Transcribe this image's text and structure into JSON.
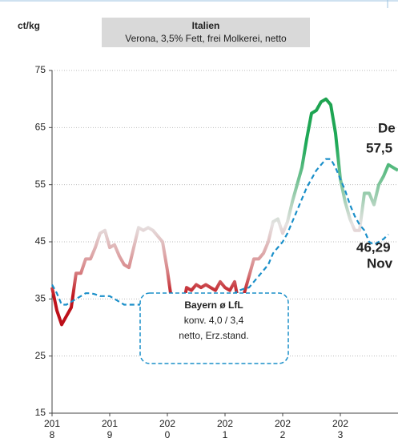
{
  "chart_data": {
    "type": "line",
    "title": "Italien",
    "subtitle": "Verona, 3,5% Fett, frei Molkerei, netto",
    "y_label": "ct/kg",
    "x": [
      2018,
      2018.083,
      2018.167,
      2018.25,
      2018.333,
      2018.417,
      2018.5,
      2018.583,
      2018.667,
      2018.75,
      2018.833,
      2018.917,
      2019,
      2019.083,
      2019.167,
      2019.25,
      2019.333,
      2019.417,
      2019.5,
      2019.583,
      2019.667,
      2019.75,
      2019.833,
      2019.917,
      2020,
      2020.083,
      2020.167,
      2020.25,
      2020.333,
      2020.417,
      2020.5,
      2020.583,
      2020.667,
      2020.75,
      2020.833,
      2020.917,
      2021,
      2021.083,
      2021.167,
      2021.25,
      2021.333,
      2021.417,
      2021.5,
      2021.583,
      2021.667,
      2021.75,
      2021.833,
      2021.917,
      2022,
      2022.083,
      2022.167,
      2022.25,
      2022.333,
      2022.417,
      2022.5,
      2022.583,
      2022.667,
      2022.75,
      2022.833,
      2022.917,
      2023,
      2023.083,
      2023.167,
      2023.25,
      2023.333,
      2023.417,
      2023.5,
      2023.583,
      2023.667,
      2023.75,
      2023.833,
      2023.917,
      2024
    ],
    "series": [
      {
        "color": "gradient",
        "values": [
          37,
          33,
          30.5,
          32,
          33.5,
          39.5,
          39.5,
          42,
          42,
          44,
          46.5,
          47,
          44,
          44.5,
          42.5,
          41,
          40.5,
          44,
          47.5,
          47,
          47.5,
          47,
          46,
          45,
          40,
          34,
          32,
          32.5,
          37,
          36.5,
          37.5,
          37,
          37.5,
          37,
          36.5,
          38,
          37,
          36.5,
          38,
          33.5,
          36,
          39,
          42,
          42,
          43,
          45,
          48.5,
          49,
          46.5,
          48.5,
          52,
          55,
          58,
          63,
          67.5,
          68,
          69.5,
          70,
          69,
          64,
          56,
          52,
          49,
          47,
          47,
          53.5,
          53.5,
          51.5,
          55,
          56.5,
          58.5,
          58,
          57.5
        ]
      },
      {
        "name": "Bayern ø LfL",
        "color": "#1a8fc9",
        "dashed": true,
        "values": [
          37.5,
          36,
          34,
          34,
          34.5,
          35,
          35.5,
          36,
          36,
          35.8,
          35.5,
          35.5,
          35.5,
          35,
          34.5,
          34,
          34,
          34,
          34,
          34,
          34.2,
          34.4,
          34.6,
          34.8,
          34.5,
          33.5,
          33,
          32.6,
          33,
          33.2,
          33.5,
          33.8,
          34,
          34,
          34.2,
          34.5,
          35,
          35.5,
          36,
          36.5,
          36.8,
          37,
          38,
          39,
          40,
          41,
          43,
          44,
          45,
          46.5,
          48.5,
          50.5,
          52.5,
          54.5,
          56,
          57.5,
          58.5,
          59.5,
          59.5,
          58,
          56,
          54,
          51.5,
          49.5,
          48,
          47,
          45,
          44.5,
          45,
          45.5,
          46.3,
          null,
          null
        ]
      }
    ],
    "series_note_lines": [
      "konv. 4,0 / 3,4",
      "netto, Erz.stand."
    ],
    "annotations": [
      {
        "text": "De",
        "color": "#1e9e4a"
      },
      {
        "text": "57,5",
        "color": "#1e9e4a"
      },
      {
        "text": "46,29",
        "color": "#2bb5e6"
      },
      {
        "text": "Nov",
        "color": "#2bb5e6"
      }
    ],
    "xlim": [
      2018,
      2024
    ],
    "xticks": [
      2018,
      2019,
      2020,
      2021,
      2022,
      2023
    ],
    "ylim": [
      15,
      75
    ],
    "yticks": [
      15,
      25,
      35,
      45,
      55,
      65,
      75
    ],
    "grid": true
  }
}
